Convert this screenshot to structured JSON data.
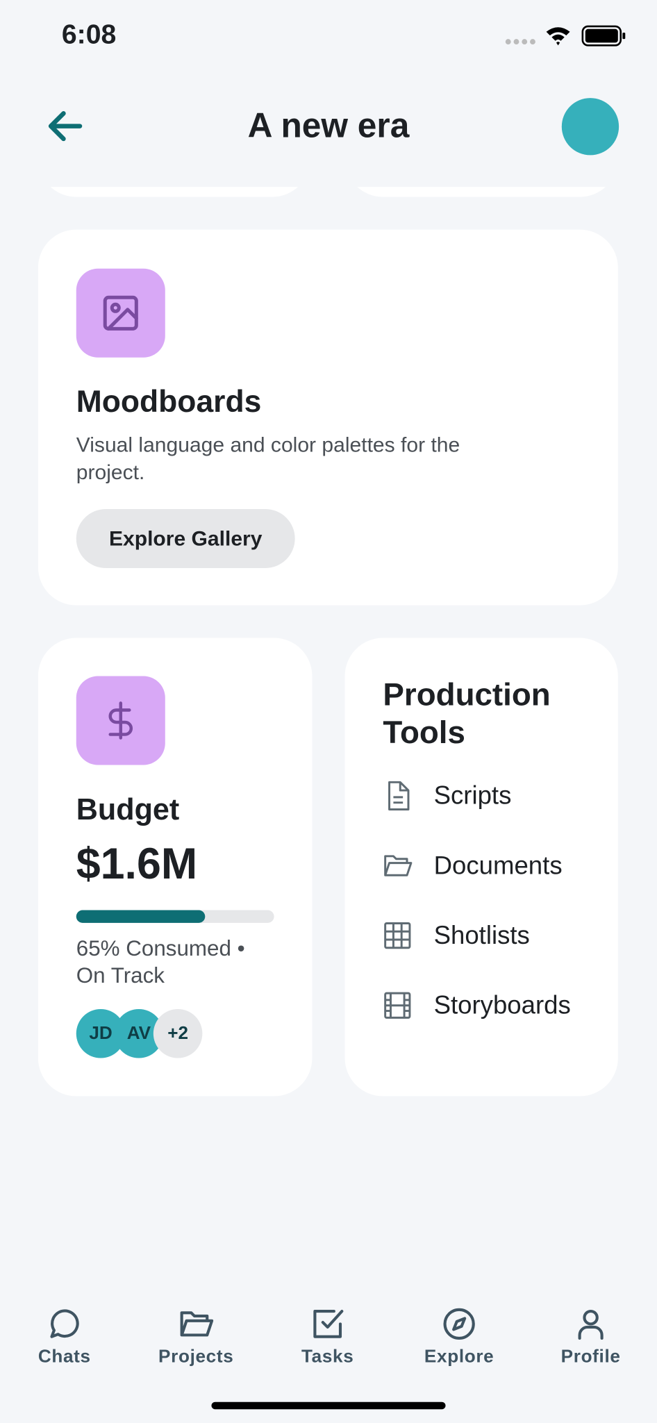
{
  "status_bar": {
    "time": "6:08"
  },
  "header": {
    "title": "A new era"
  },
  "moodboards": {
    "title": "Moodboards",
    "description": "Visual language and color palettes for the project.",
    "button": "Explore Gallery"
  },
  "budget": {
    "title": "Budget",
    "amount": "$1.6M",
    "status": "65% Consumed • On Track",
    "avatars": [
      "JD",
      "AV",
      "+2"
    ]
  },
  "production_tools": {
    "title": "Production Tools",
    "items": [
      "Scripts",
      "Documents",
      "Shotlists",
      "Storyboards"
    ]
  },
  "tab_bar": {
    "tabs": [
      "Chats",
      "Projects",
      "Tasks",
      "Explore",
      "Profile"
    ]
  }
}
